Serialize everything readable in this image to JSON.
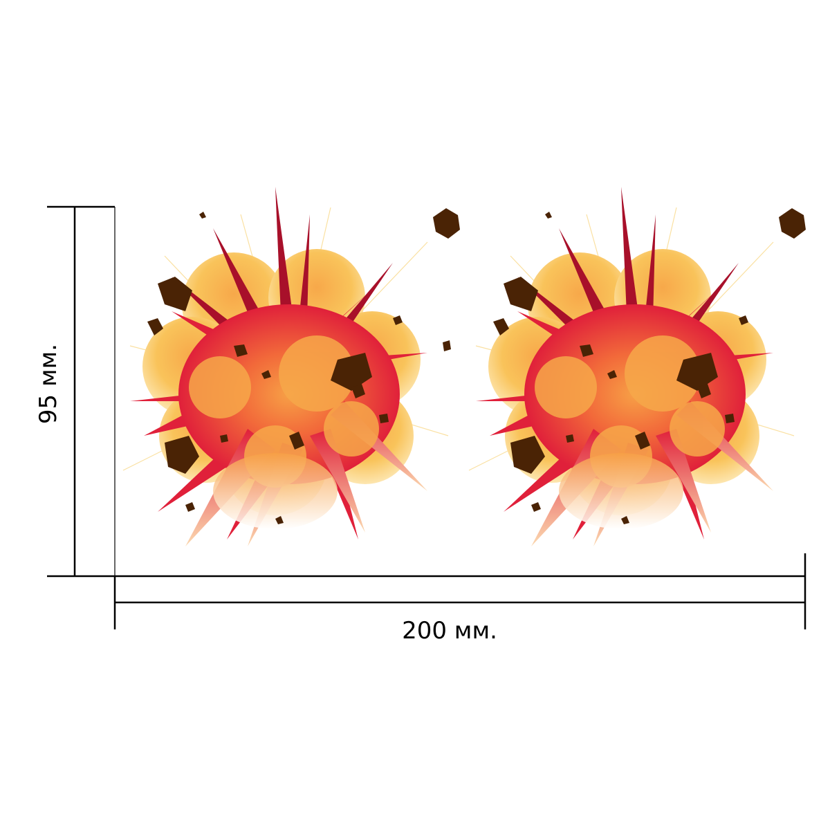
{
  "dimensions": {
    "width_label": "200 мм.",
    "height_label": "95 мм."
  },
  "artwork": {
    "subject": "explosion-sticker",
    "copies": 2
  },
  "colors": {
    "line": "#000000",
    "debris": "#4a2305",
    "burst_red": "#e0203a",
    "burst_orange": "#f08a30",
    "cloud_yellow": "#f9c35a",
    "spike_dark": "#a8102a"
  }
}
